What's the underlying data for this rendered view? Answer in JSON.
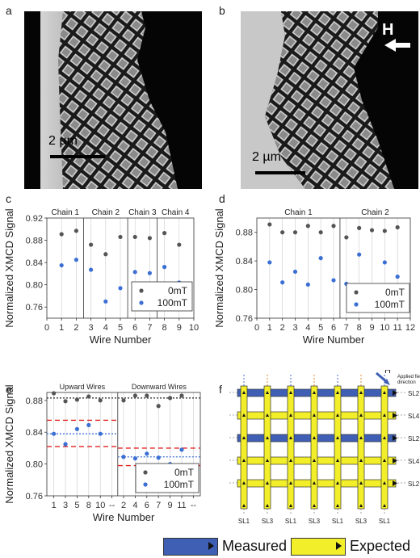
{
  "panels": {
    "a": {
      "label": "a",
      "scale_bar": "2 µm"
    },
    "b": {
      "label": "b",
      "scale_bar": "2 µm",
      "field_label": "H"
    },
    "c": {
      "label": "c"
    },
    "d": {
      "label": "d"
    },
    "e": {
      "label": "e"
    },
    "f": {
      "label": "f",
      "field_label": "H",
      "field_note": "Applied field direction",
      "right_labels": [
        "SL2",
        "SL4",
        "SL2",
        "SL4",
        "SL2"
      ],
      "bottom_labels": [
        "SL1",
        "SL3",
        "SL1",
        "SL3",
        "SL1",
        "SL3",
        "SL1"
      ]
    }
  },
  "legend_bottom": {
    "measured": "Measured",
    "expected": "Expected",
    "measured_color": "#3f5fb5",
    "expected_color": "#f2ee2a"
  },
  "colors": {
    "zero": "#555555",
    "hundred": "#3b6fd4",
    "red": "#e02020",
    "blue_line": "#3b6fd4",
    "black_line": "#222222"
  },
  "chart_data": [
    {
      "id": "c",
      "type": "scatter",
      "xlabel": "Wire Number",
      "ylabel": "Normalized XMCD Signal",
      "xlim": [
        0,
        10
      ],
      "ylim": [
        0.74,
        0.92
      ],
      "xticks": [
        0,
        1,
        2,
        3,
        4,
        5,
        6,
        7,
        8,
        9,
        10
      ],
      "yticks": [
        0.76,
        0.8,
        0.84,
        0.88,
        0.92
      ],
      "chain_labels": [
        "Chain 1",
        "Chain 2",
        "Chain 3",
        "Chain 4"
      ],
      "chain_dividers": [
        2.5,
        5.5,
        7.5
      ],
      "legend": [
        "0mT",
        "100mT"
      ],
      "series": [
        {
          "name": "0mT",
          "x": [
            1,
            2,
            3,
            4,
            5,
            6,
            7,
            8,
            9
          ],
          "y": [
            0.891,
            0.897,
            0.872,
            0.855,
            0.886,
            0.886,
            0.884,
            0.893,
            0.872
          ]
        },
        {
          "name": "100mT",
          "x": [
            1,
            2,
            3,
            4,
            5,
            6,
            7,
            8,
            9
          ],
          "y": [
            0.835,
            0.845,
            0.827,
            0.77,
            0.794,
            0.823,
            0.821,
            0.832,
            0.804
          ]
        }
      ]
    },
    {
      "id": "d",
      "type": "scatter",
      "xlabel": "Wire Number",
      "ylabel": "Normalized XMCD Signal",
      "xlim": [
        0,
        12
      ],
      "ylim": [
        0.76,
        0.9
      ],
      "xticks": [
        0,
        1,
        2,
        3,
        4,
        5,
        6,
        7,
        8,
        9,
        10,
        11,
        12
      ],
      "yticks": [
        0.76,
        0.8,
        0.84,
        0.88
      ],
      "chain_labels": [
        "Chain 1",
        "Chain 2"
      ],
      "chain_dividers": [
        6.5
      ],
      "legend": [
        "0mT",
        "100mT"
      ],
      "series": [
        {
          "name": "0mT",
          "x": [
            1,
            2,
            3,
            4,
            5,
            6,
            7,
            8,
            9,
            10,
            11
          ],
          "y": [
            0.891,
            0.88,
            0.88,
            0.889,
            0.88,
            0.889,
            0.873,
            0.886,
            0.883,
            0.882,
            0.887
          ]
        },
        {
          "name": "100mT",
          "x": [
            1,
            2,
            3,
            4,
            5,
            6,
            7,
            8,
            9,
            10,
            11
          ],
          "y": [
            0.838,
            0.81,
            0.825,
            0.807,
            0.844,
            0.813,
            0.808,
            0.849,
            0.8,
            0.838,
            0.818
          ]
        }
      ]
    },
    {
      "id": "e",
      "type": "scatter",
      "xlabel": "Wire Number",
      "ylabel": "Normalized XMCD Signal",
      "ylim": [
        0.76,
        0.89
      ],
      "yticks": [
        0.76,
        0.8,
        0.84,
        0.88
      ],
      "xticklabels": [
        "1",
        "3",
        "5",
        "8",
        "10",
        "--",
        "2",
        "4",
        "6",
        "7",
        "9",
        "11",
        "--"
      ],
      "group_labels": [
        "Upward Wires",
        "Downward Wires"
      ],
      "legend": [
        "0mT",
        "100mT"
      ],
      "series": [
        {
          "name": "0mT",
          "y": [
            0.889,
            0.879,
            0.881,
            0.885,
            0.88,
            null,
            0.88,
            0.886,
            0.886,
            0.873,
            0.883,
            0.886,
            null
          ]
        },
        {
          "name": "100mT",
          "y": [
            0.838,
            0.825,
            0.844,
            0.849,
            0.838,
            null,
            0.809,
            0.807,
            0.813,
            0.808,
            0.8,
            0.818,
            null
          ]
        }
      ],
      "black_mean": 0.883,
      "upward_mean": 0.838,
      "upward_band": [
        0.822,
        0.855
      ],
      "downward_mean": 0.809,
      "downward_band": [
        0.798,
        0.82
      ]
    }
  ]
}
